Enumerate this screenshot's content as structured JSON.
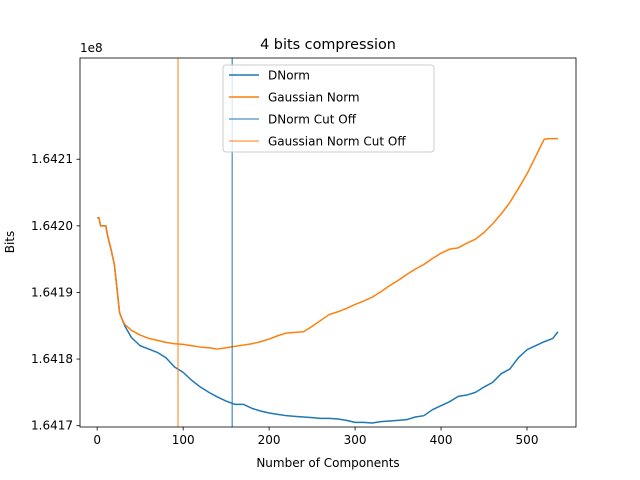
{
  "chart_data": {
    "type": "line",
    "title": "4 bits compression",
    "xlabel": "Number of Components",
    "ylabel": "Bits",
    "offset_label": "1e8",
    "xlim": [
      -20,
      557
    ],
    "ylim": [
      164169800,
      164225200
    ],
    "y_scale_factor": 100000000,
    "xticks": [
      0,
      100,
      200,
      300,
      400,
      500
    ],
    "yticks": [
      164170000,
      164180000,
      164190000,
      164200000,
      164210000
    ],
    "ytick_labels": [
      "1.6417",
      "1.6418",
      "1.6419",
      "1.6420",
      "1.6421"
    ],
    "grid": false,
    "legend_position": "top-center",
    "series": [
      {
        "name": "DNorm",
        "color": "#1f77b4",
        "x": [
          0,
          2,
          4,
          10,
          12,
          16,
          20,
          26,
          28,
          32,
          40,
          50,
          60,
          70,
          80,
          90,
          100,
          110,
          120,
          130,
          140,
          150,
          160,
          170,
          180,
          190,
          200,
          210,
          220,
          230,
          240,
          250,
          260,
          270,
          280,
          290,
          300,
          310,
          320,
          330,
          340,
          350,
          360,
          370,
          380,
          390,
          400,
          410,
          420,
          430,
          440,
          450,
          460,
          470,
          480,
          490,
          500,
          510,
          520,
          530,
          536
        ],
        "y": [
          164201200,
          164201200,
          164200000,
          164200000,
          164198600,
          164196500,
          164194200,
          164187000,
          164186300,
          164185000,
          164183200,
          164182000,
          164181500,
          164181000,
          164180200,
          164178800,
          164178000,
          164176800,
          164175800,
          164175000,
          164174300,
          164173700,
          164173200,
          164173200,
          164172600,
          164172200,
          164171900,
          164171700,
          164171500,
          164171400,
          164171300,
          164171200,
          164171100,
          164171100,
          164171000,
          164170800,
          164170500,
          164170500,
          164170400,
          164170600,
          164170700,
          164170800,
          164170900,
          164171300,
          164171500,
          164172400,
          164173000,
          164173600,
          164174400,
          164174600,
          164175000,
          164175800,
          164176500,
          164177800,
          164178500,
          164180200,
          164181400,
          164182000,
          164182600,
          164183100,
          164184100
        ]
      },
      {
        "name": "Gaussian Norm",
        "color": "#ff7f0e",
        "x": [
          0,
          2,
          4,
          10,
          12,
          16,
          20,
          26,
          28,
          32,
          40,
          50,
          60,
          70,
          80,
          90,
          100,
          110,
          120,
          130,
          140,
          150,
          160,
          170,
          180,
          190,
          200,
          210,
          220,
          230,
          240,
          250,
          260,
          270,
          280,
          290,
          300,
          310,
          320,
          330,
          340,
          350,
          360,
          370,
          380,
          390,
          400,
          410,
          420,
          430,
          440,
          450,
          460,
          470,
          480,
          490,
          500,
          510,
          520,
          526,
          530,
          536
        ],
        "y": [
          164201200,
          164201200,
          164200000,
          164200000,
          164198600,
          164196500,
          164194200,
          164187000,
          164186300,
          164185200,
          164184300,
          164183600,
          164183100,
          164182800,
          164182500,
          164182300,
          164182200,
          164182000,
          164181800,
          164181700,
          164181500,
          164181700,
          164181900,
          164182100,
          164182300,
          164182600,
          164183000,
          164183500,
          164183900,
          164184000,
          164184100,
          164184900,
          164185800,
          164186700,
          164187100,
          164187600,
          164188200,
          164188700,
          164189300,
          164190100,
          164191000,
          164191800,
          164192700,
          164193500,
          164194200,
          164195100,
          164195900,
          164196500,
          164196700,
          164197400,
          164198000,
          164199000,
          164200300,
          164201800,
          164203500,
          164205600,
          164207800,
          164210400,
          164213000,
          164213100,
          164213100,
          164213100
        ]
      }
    ],
    "cutoffs": [
      {
        "name": "DNorm Cut Off",
        "color": "#1f77b4",
        "x": 157
      },
      {
        "name": "Gaussian Norm Cut Off",
        "color": "#ff7f0e",
        "x": 94
      }
    ]
  }
}
